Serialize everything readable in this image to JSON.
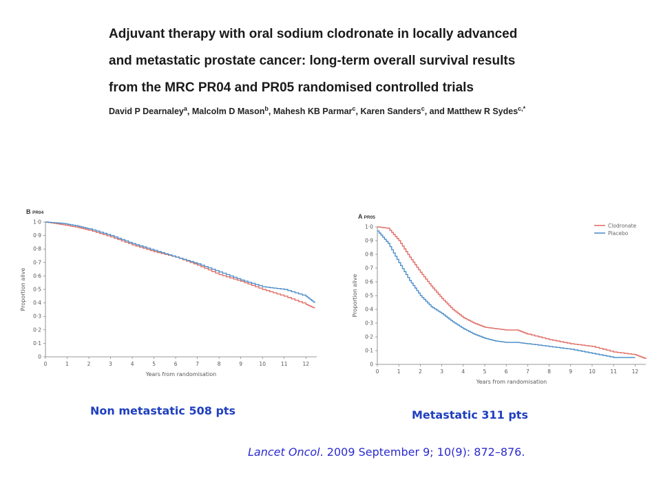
{
  "paper": {
    "title_lines": [
      "Adjuvant therapy with oral sodium clodronate in locally advanced",
      "and metastatic prostate cancer: long-term overall survival results",
      "from the MRC PR04 and PR05 randomised controlled trials"
    ],
    "authors": [
      {
        "name": "David P Dearnaley",
        "sup": "a",
        "sep": ", "
      },
      {
        "name": "Malcolm D Mason",
        "sup": "b",
        "sep": ", "
      },
      {
        "name": "Mahesh KB Parmar",
        "sup": "c",
        "sep": ", "
      },
      {
        "name": "Karen Sanders",
        "sup": "c",
        "sep": ", and "
      },
      {
        "name": "Matthew R Sydes",
        "sup": "c,*",
        "sep": ""
      }
    ]
  },
  "captions": {
    "left": "Non metastatic 508 pts",
    "right": "Metastatic 311 pts"
  },
  "citation": {
    "journal": "Lancet Oncol",
    "rest": ". 2009 September 9; 10(9): 872–876."
  },
  "colors": {
    "clodronate": "#e07068",
    "placebo": "#4f8fc8",
    "caption": "#1f3fbf",
    "citation": "#2a2ad0"
  },
  "chart_data": [
    {
      "type": "line",
      "panel_letter": "B",
      "panel_title": "PR04",
      "xlabel": "Years from randomisation",
      "ylabel": "Proportion alive",
      "xlim": [
        0,
        12.5
      ],
      "ylim": [
        0,
        1.0
      ],
      "xticks": [
        0,
        1,
        2,
        3,
        4,
        5,
        6,
        7,
        8,
        9,
        10,
        11,
        12
      ],
      "yticks": [
        "0",
        "0·1",
        "0·2",
        "0·3",
        "0·4",
        "0·5",
        "0·6",
        "0·7",
        "0·8",
        "0·9",
        "1·0"
      ],
      "legend": false,
      "series": [
        {
          "color_key": "clodronate",
          "x": [
            0,
            0.8,
            1.5,
            2.0,
            3.0,
            4.0,
            5.0,
            6.0,
            7.0,
            8.0,
            9.0,
            10.0,
            11.0,
            12.0,
            12.4
          ],
          "y": [
            1.0,
            0.98,
            0.96,
            0.94,
            0.89,
            0.83,
            0.78,
            0.74,
            0.68,
            0.61,
            0.56,
            0.5,
            0.45,
            0.39,
            0.36
          ]
        },
        {
          "color_key": "placebo",
          "x": [
            0,
            0.8,
            1.5,
            2.0,
            3.0,
            4.0,
            5.0,
            6.0,
            7.0,
            8.0,
            9.0,
            10.0,
            11.0,
            12.0,
            12.4
          ],
          "y": [
            1.0,
            0.99,
            0.97,
            0.95,
            0.9,
            0.84,
            0.79,
            0.74,
            0.69,
            0.63,
            0.57,
            0.52,
            0.5,
            0.45,
            0.4
          ]
        }
      ]
    },
    {
      "type": "line",
      "panel_letter": "A",
      "panel_title": "PR05",
      "xlabel": "Years from randomisation",
      "ylabel": "Proportion alive",
      "xlim": [
        0,
        12.5
      ],
      "ylim": [
        0,
        1.0
      ],
      "xticks": [
        0,
        1,
        2,
        3,
        4,
        5,
        6,
        7,
        8,
        9,
        10,
        11,
        12
      ],
      "yticks": [
        "0",
        "0·1",
        "0·2",
        "0·3",
        "0·4",
        "0·5",
        "0·6",
        "0·7",
        "0·8",
        "0·9",
        "1·0"
      ],
      "legend": "top-right",
      "series": [
        {
          "name": "Clodronate",
          "color_key": "clodronate",
          "x": [
            0,
            0.5,
            1.0,
            1.5,
            2.0,
            2.5,
            3.0,
            3.5,
            4.0,
            4.5,
            5.0,
            5.5,
            6.0,
            6.5,
            7.0,
            8.0,
            9.0,
            10.0,
            11.0,
            12.0,
            12.5
          ],
          "y": [
            1.0,
            0.99,
            0.9,
            0.78,
            0.67,
            0.57,
            0.48,
            0.4,
            0.34,
            0.3,
            0.27,
            0.26,
            0.25,
            0.25,
            0.22,
            0.18,
            0.15,
            0.13,
            0.09,
            0.07,
            0.04
          ]
        },
        {
          "name": "Placebo",
          "color_key": "placebo",
          "x": [
            0,
            0.5,
            1.0,
            1.5,
            2.0,
            2.5,
            3.0,
            3.5,
            4.0,
            4.5,
            5.0,
            5.5,
            6.0,
            6.5,
            7.0,
            8.0,
            9.0,
            10.0,
            11.0,
            12.0
          ],
          "y": [
            0.97,
            0.88,
            0.74,
            0.61,
            0.5,
            0.42,
            0.37,
            0.31,
            0.26,
            0.22,
            0.19,
            0.17,
            0.16,
            0.16,
            0.15,
            0.13,
            0.11,
            0.08,
            0.05,
            0.05
          ]
        }
      ]
    }
  ]
}
